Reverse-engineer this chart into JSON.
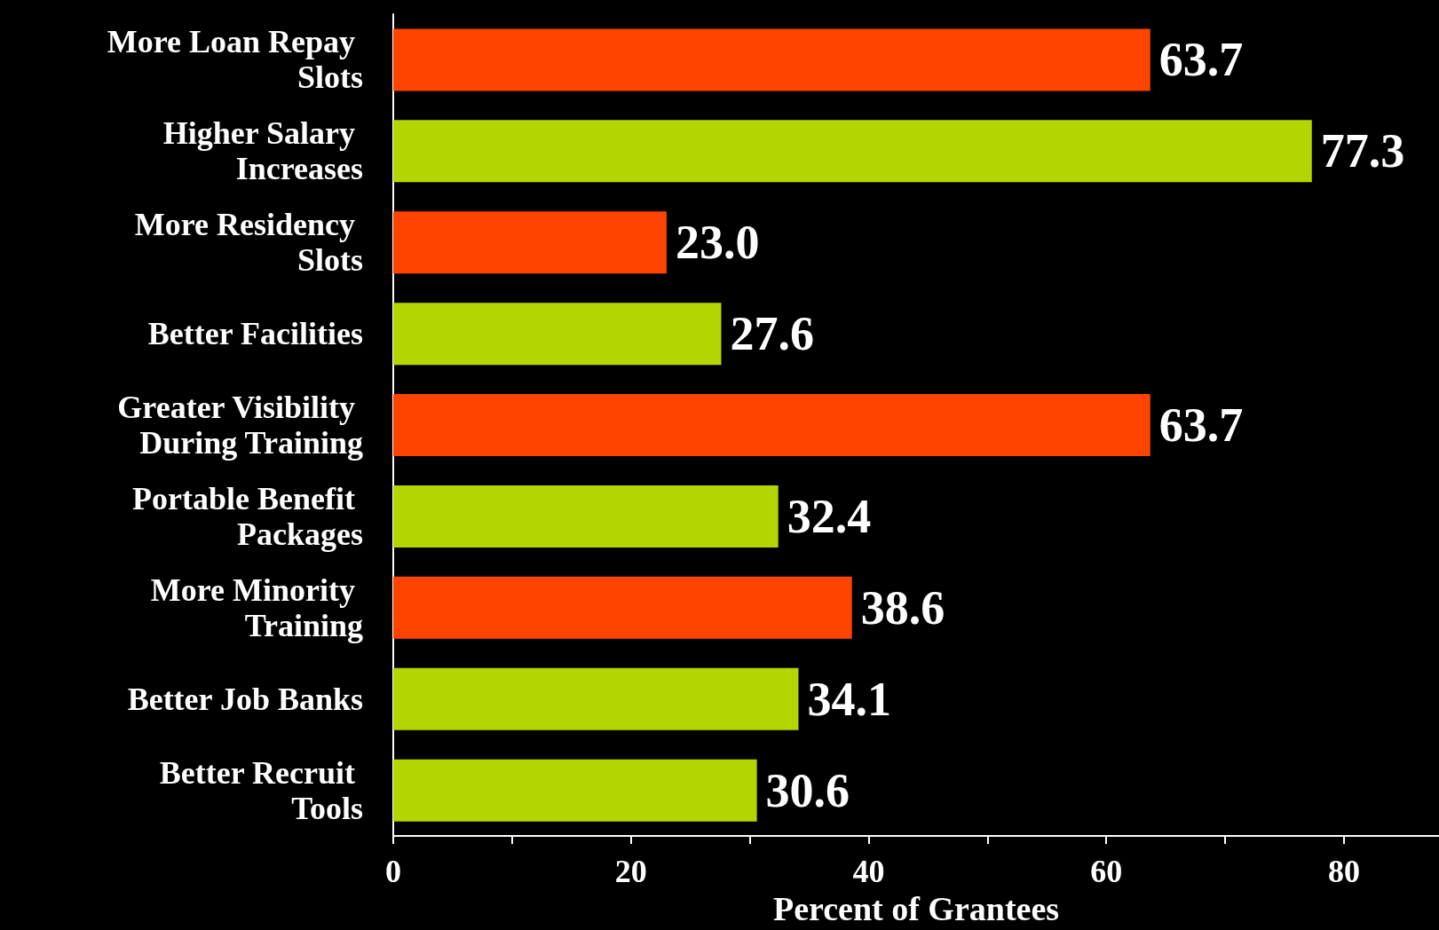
{
  "chart_data": {
    "type": "bar",
    "orientation": "horizontal",
    "xlabel": "Percent of Grantees",
    "categories": [
      "More Loan Repay Slots",
      "Higher Salary Increases",
      "More Residency Slots",
      "Better Facilities",
      "Greater Visibility During Training",
      "Portable Benefit Packages",
      "More Minority Training",
      "Better Job Banks",
      "Better Recruit Tools"
    ],
    "values": [
      63.7,
      77.3,
      23.0,
      27.6,
      63.7,
      32.4,
      38.6,
      34.1,
      30.6
    ],
    "value_labels": [
      "63.7",
      "77.3",
      "23.0",
      "27.6",
      "63.7",
      "32.4",
      "38.6",
      "34.1",
      "30.6"
    ],
    "colors": [
      "#ff4400",
      "#b3d600",
      "#ff4400",
      "#b3d600",
      "#ff4400",
      "#b3d600",
      "#ff4400",
      "#b3d600",
      "#b3d600"
    ],
    "xlim": [
      0,
      88
    ],
    "xticks": [
      0,
      {
        "value": 10,
        "label": null
      },
      20,
      {
        "value": 30,
        "label": null
      },
      40,
      {
        "value": 50,
        "label": null
      },
      60,
      {
        "value": 70,
        "label": null
      },
      80
    ],
    "grid": false
  }
}
